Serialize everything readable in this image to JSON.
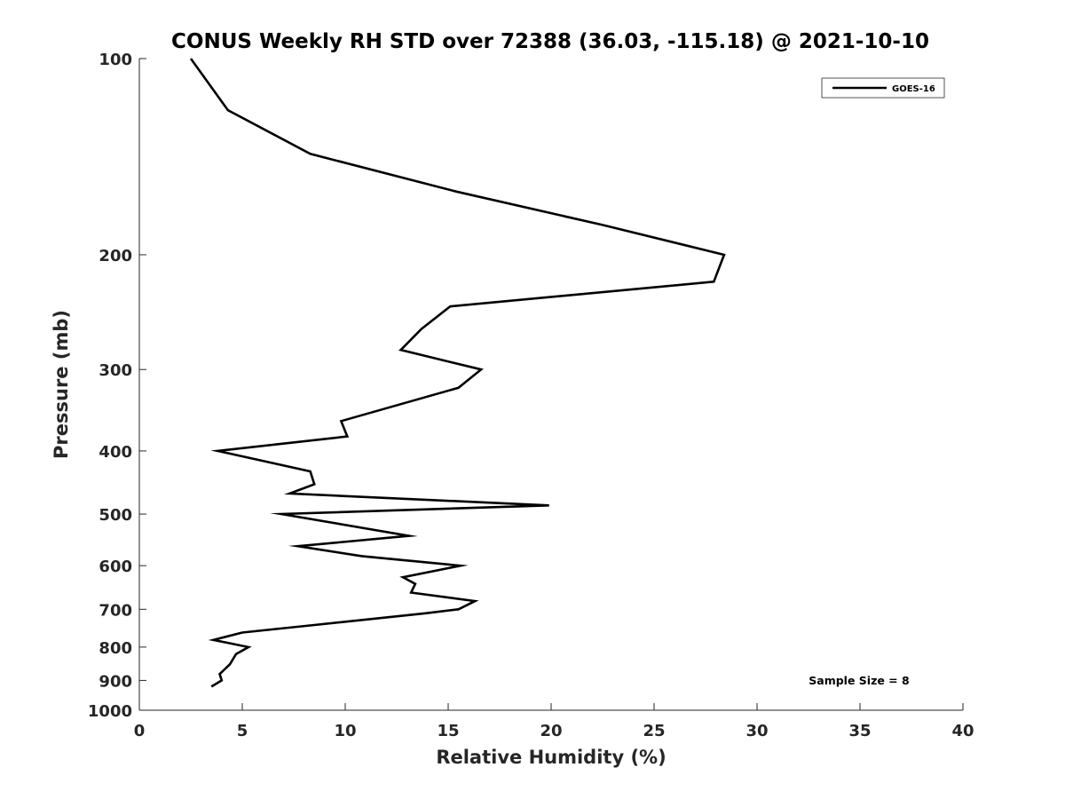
{
  "chart_data": {
    "type": "line",
    "title": "CONUS Weekly RH STD over 72388 (36.03, -115.18) @ 2021-10-10",
    "xlabel": "Relative Humidity (%)",
    "ylabel": "Pressure (mb)",
    "xlim": [
      0,
      40
    ],
    "ylim": [
      100,
      1000
    ],
    "y_scale": "log",
    "y_reversed": true,
    "grid": false,
    "legend_position": "top-right",
    "x_ticks": [
      0,
      5,
      10,
      15,
      20,
      25,
      30,
      35,
      40
    ],
    "y_ticks": [
      100,
      200,
      300,
      400,
      500,
      600,
      700,
      800,
      900,
      1000
    ],
    "series": [
      {
        "name": "GOES-16",
        "color": "#000000",
        "points": [
          {
            "x": 2.5,
            "y": 100
          },
          {
            "x": 4.3,
            "y": 120
          },
          {
            "x": 8.3,
            "y": 140
          },
          {
            "x": 15.4,
            "y": 160
          },
          {
            "x": 22.5,
            "y": 180
          },
          {
            "x": 28.4,
            "y": 200
          },
          {
            "x": 27.9,
            "y": 220
          },
          {
            "x": 15.1,
            "y": 240
          },
          {
            "x": 13.7,
            "y": 260
          },
          {
            "x": 12.7,
            "y": 280
          },
          {
            "x": 16.6,
            "y": 300
          },
          {
            "x": 15.5,
            "y": 320
          },
          {
            "x": 9.8,
            "y": 360
          },
          {
            "x": 10.1,
            "y": 380
          },
          {
            "x": 3.8,
            "y": 400
          },
          {
            "x": 8.3,
            "y": 430
          },
          {
            "x": 8.5,
            "y": 450
          },
          {
            "x": 7.3,
            "y": 465
          },
          {
            "x": 19.9,
            "y": 485
          },
          {
            "x": 6.9,
            "y": 500
          },
          {
            "x": 13.1,
            "y": 540
          },
          {
            "x": 7.7,
            "y": 560
          },
          {
            "x": 10.8,
            "y": 580
          },
          {
            "x": 15.6,
            "y": 600
          },
          {
            "x": 12.8,
            "y": 625
          },
          {
            "x": 13.4,
            "y": 640
          },
          {
            "x": 13.2,
            "y": 660
          },
          {
            "x": 16.3,
            "y": 680
          },
          {
            "x": 15.5,
            "y": 700
          },
          {
            "x": 13.9,
            "y": 710
          },
          {
            "x": 8.5,
            "y": 740
          },
          {
            "x": 5.0,
            "y": 760
          },
          {
            "x": 3.6,
            "y": 780
          },
          {
            "x": 5.3,
            "y": 800
          },
          {
            "x": 4.7,
            "y": 820
          },
          {
            "x": 4.4,
            "y": 850
          },
          {
            "x": 3.9,
            "y": 880
          },
          {
            "x": 4.0,
            "y": 900
          },
          {
            "x": 3.5,
            "y": 920
          }
        ]
      }
    ],
    "annotation": "Sample Size = 8"
  }
}
